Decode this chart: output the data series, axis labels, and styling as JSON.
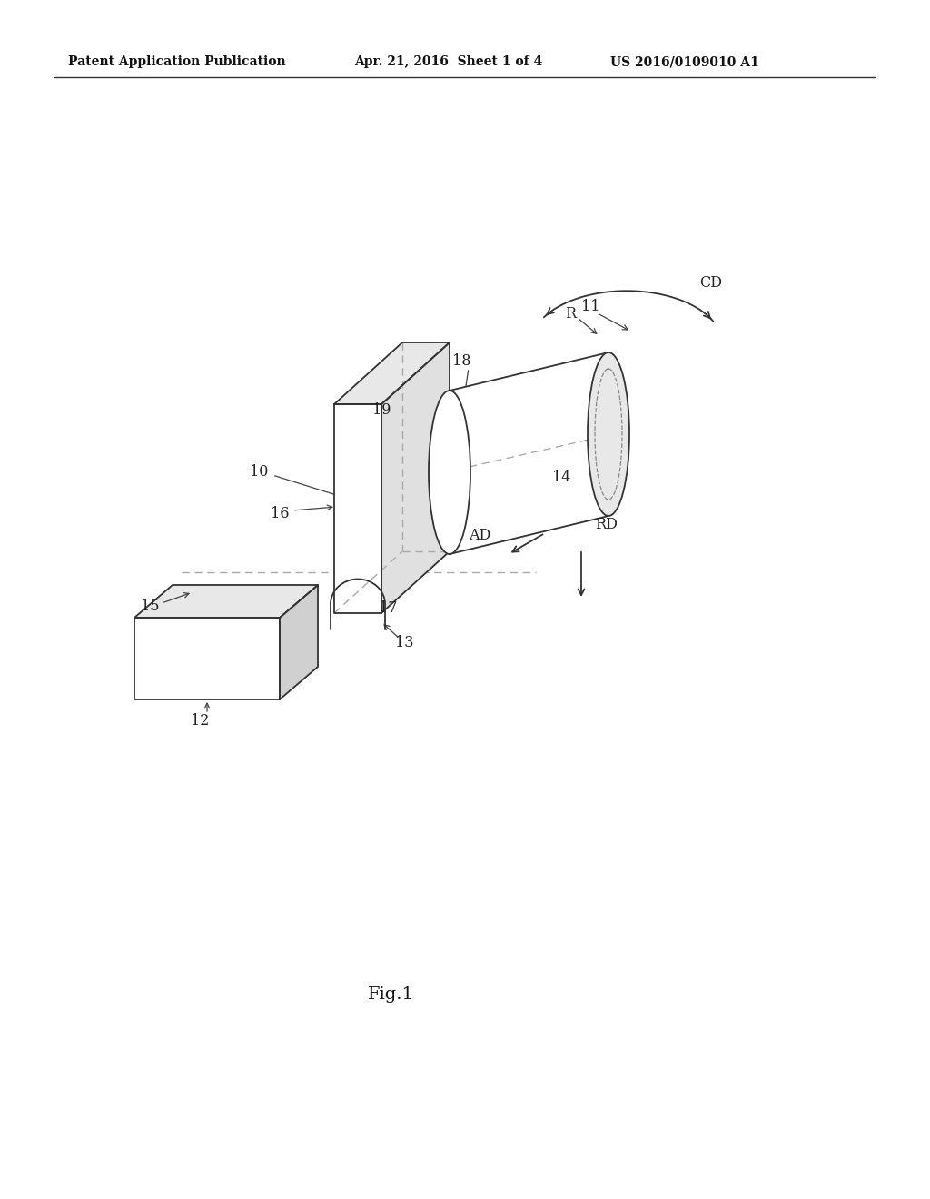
{
  "bg_color": "#ffffff",
  "line_color": "#333333",
  "dashed_color": "#888888",
  "header_left": "Patent Application Publication",
  "header_mid": "Apr. 21, 2016  Sheet 1 of 4",
  "header_right": "US 2016/0109010 A1",
  "fig_label": "Fig.1"
}
